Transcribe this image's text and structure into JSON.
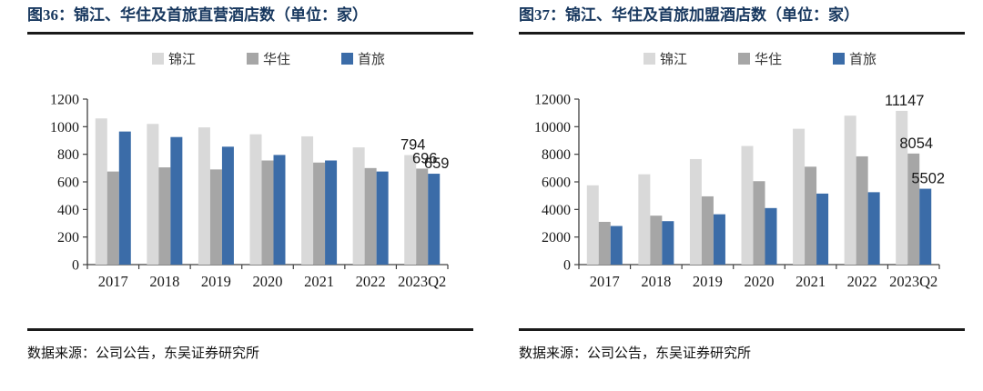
{
  "panels": [
    {
      "title": "图36：锦江、华住及首旅直营酒店数（单位：家）",
      "source": "数据来源：公司公告，东吴证券研究所"
    },
    {
      "title": "图37：锦江、华住及首旅加盟酒店数（单位：家）",
      "source": "数据来源：公司公告，东吴证券研究所"
    }
  ],
  "colors": {
    "title_navy": "#17375E",
    "rule_black": "#1a1a1a",
    "axis_gray": "#404040",
    "jinjiang_light_gray": "#D9D9D9",
    "huazhu_mid_gray": "#A6A6A6",
    "shoulv_steel_blue": "#3B6CA8"
  },
  "chart_data": [
    {
      "type": "bar",
      "title": "图36：锦江、华住及首旅直营酒店数（单位：家）",
      "categories": [
        "2017",
        "2018",
        "2019",
        "2020",
        "2021",
        "2022",
        "2023Q2"
      ],
      "series": [
        {
          "name": "锦江",
          "color": "#D9D9D9",
          "values": [
            1060,
            1020,
            995,
            945,
            930,
            850,
            794
          ]
        },
        {
          "name": "华住",
          "color": "#A6A6A6",
          "values": [
            675,
            705,
            690,
            755,
            740,
            700,
            696
          ]
        },
        {
          "name": "首旅",
          "color": "#3B6CA8",
          "values": [
            965,
            925,
            855,
            795,
            755,
            675,
            659
          ]
        }
      ],
      "ylim": [
        0,
        1200
      ],
      "ytick_step": 200,
      "yticks": [
        0,
        200,
        400,
        600,
        800,
        1000,
        1200
      ],
      "annotated_category": "2023Q2",
      "annotations": [
        "794",
        "696",
        "659"
      ],
      "legend_position": "top",
      "grid": false,
      "xlabel": "",
      "ylabel": ""
    },
    {
      "type": "bar",
      "title": "图37：锦江、华住及首旅加盟酒店数（单位：家）",
      "categories": [
        "2017",
        "2018",
        "2019",
        "2020",
        "2021",
        "2022",
        "2023Q2"
      ],
      "series": [
        {
          "name": "锦江",
          "color": "#D9D9D9",
          "values": [
            5750,
            6550,
            7650,
            8600,
            9850,
            10800,
            11147
          ]
        },
        {
          "name": "华住",
          "color": "#A6A6A6",
          "values": [
            3100,
            3550,
            4950,
            6050,
            7100,
            7850,
            8054
          ]
        },
        {
          "name": "首旅",
          "color": "#3B6CA8",
          "values": [
            2800,
            3150,
            3650,
            4100,
            5150,
            5250,
            5502
          ]
        }
      ],
      "ylim": [
        0,
        12000
      ],
      "ytick_step": 2000,
      "yticks": [
        0,
        2000,
        4000,
        6000,
        8000,
        10000,
        12000
      ],
      "annotated_category": "2023Q2",
      "annotations": [
        "11147",
        "8054",
        "5502"
      ],
      "legend_position": "top",
      "grid": false,
      "xlabel": "",
      "ylabel": ""
    }
  ]
}
